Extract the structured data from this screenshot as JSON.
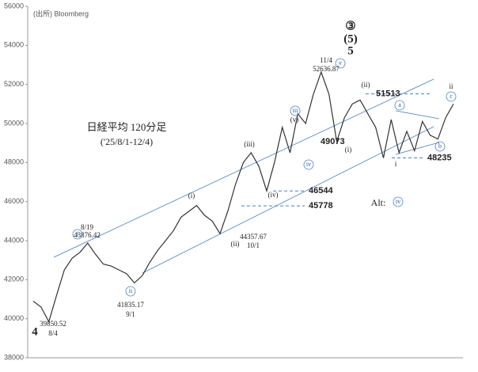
{
  "chart_data": {
    "type": "line",
    "source": "(出所) Bloomberg",
    "title": "日経平均 120分足",
    "subtitle": "('25/8/1-12/4)",
    "color": "#333333",
    "values": [
      40900,
      40600,
      39850,
      41200,
      42500,
      43100,
      43400,
      43876,
      43300,
      42800,
      42700,
      42500,
      42300,
      41835,
      42200,
      42900,
      43500,
      44000,
      44500,
      45200,
      45500,
      45800,
      45300,
      45000,
      44357,
      45500,
      46900,
      48000,
      48500,
      47800,
      46544,
      48000,
      49800,
      48500,
      50500,
      50000,
      51500,
      52636,
      51500,
      49073,
      50300,
      51000,
      51200,
      50500,
      49800,
      48235,
      50200,
      48500,
      49600,
      48600,
      50100,
      49400,
      49200,
      50300,
      51000
    ],
    "ylim": [
      38000,
      56000
    ],
    "yticks": [
      38000,
      40000,
      42000,
      44000,
      46000,
      48000,
      50000,
      52000,
      54000,
      56000
    ],
    "levels": [
      51513,
      49073,
      48235,
      46544,
      45778
    ],
    "level_color": "#1f3e7a",
    "annotations": [
      "③",
      "(5)",
      "5",
      "11/4",
      "52636.87",
      "v",
      "(iii)",
      "iii",
      "(v)",
      "(i)",
      "8/19",
      "43876.42",
      "i",
      "ii",
      "41835.17",
      "9/1",
      "39850.52",
      "8/4",
      "4",
      "(ii)",
      "44357.67",
      "10/1",
      "(iv)",
      "iv",
      "(i)",
      "(ii)",
      "a",
      "b",
      "c",
      "i",
      "ii",
      "Alt:",
      "iv"
    ]
  }
}
